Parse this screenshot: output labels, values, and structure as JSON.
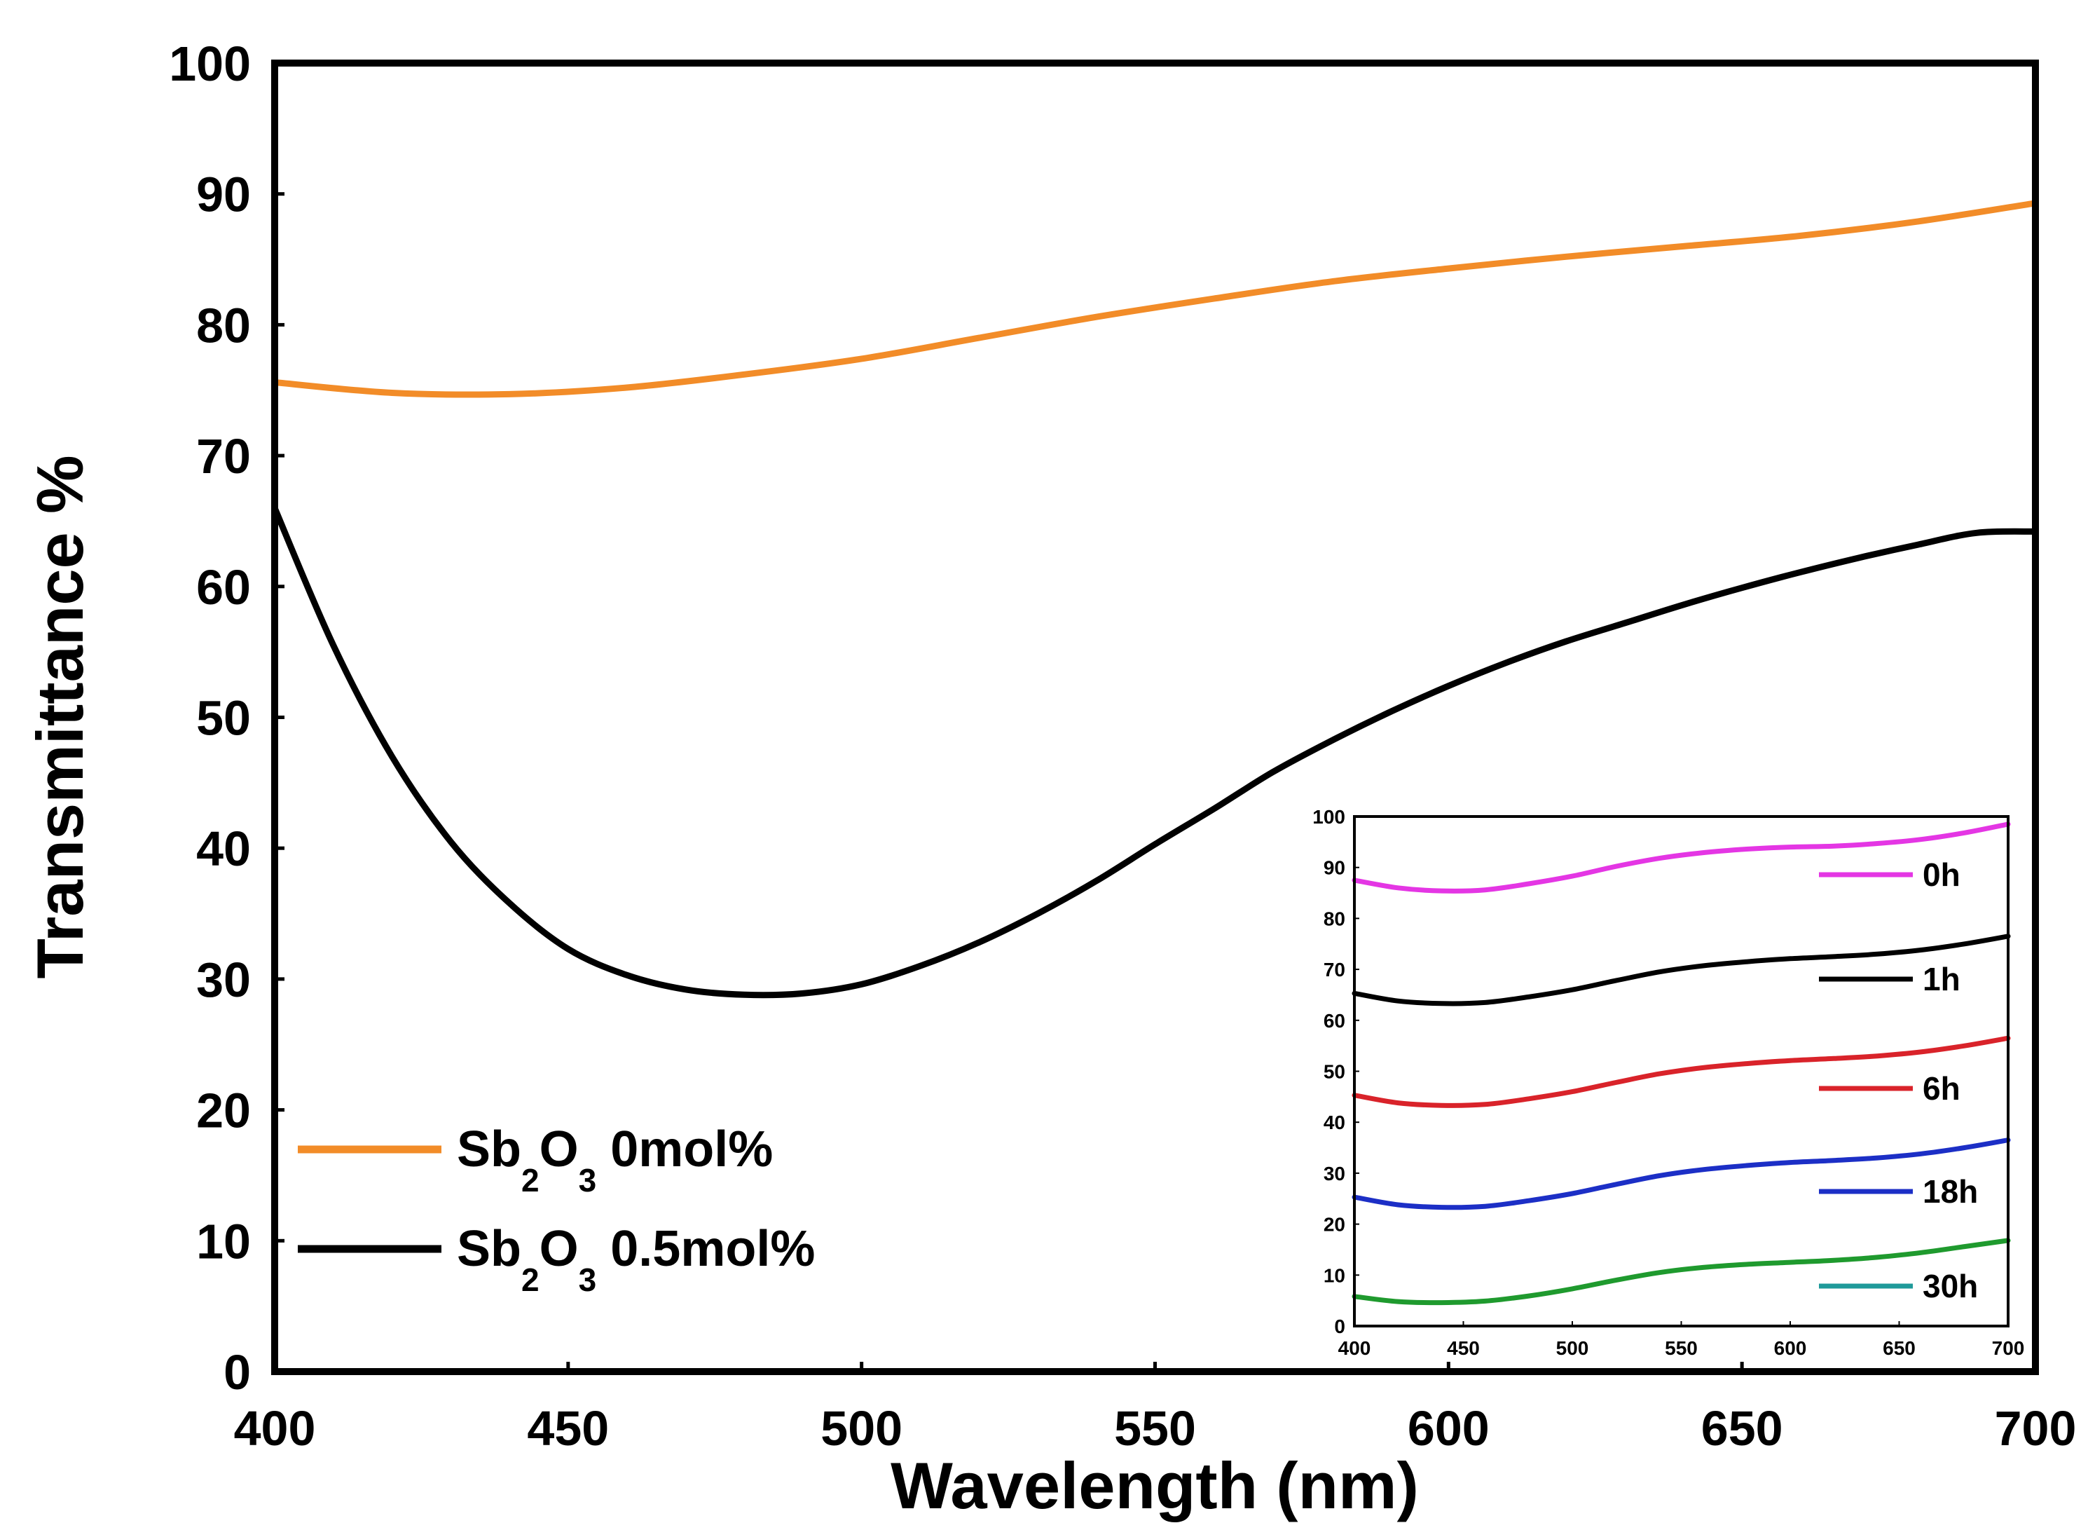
{
  "chart_data": [
    {
      "type": "line",
      "xlabel": "Wavelength (nm)",
      "ylabel": "Transmittance %",
      "xlim": [
        400,
        700
      ],
      "ylim": [
        0,
        100
      ],
      "xticks": [
        400,
        450,
        500,
        550,
        600,
        650,
        700
      ],
      "yticks": [
        0,
        10,
        20,
        30,
        40,
        50,
        60,
        70,
        80,
        90,
        100
      ],
      "legend_position": "bottom-left",
      "series": [
        {
          "name": "Sb2O3 0mol%",
          "label_parts": [
            "Sb",
            "2",
            "O",
            "3",
            " 0mol%"
          ],
          "color": "#F28C28",
          "x": [
            400,
            420,
            440,
            460,
            480,
            500,
            520,
            540,
            560,
            580,
            600,
            620,
            640,
            660,
            680,
            700
          ],
          "y": [
            75.6,
            74.8,
            74.7,
            75.2,
            76.2,
            77.4,
            79.0,
            80.6,
            82.0,
            83.3,
            84.3,
            85.2,
            86.0,
            86.8,
            87.9,
            89.3
          ]
        },
        {
          "name": "Sb2O3 0.5mol%",
          "label_parts": [
            "Sb",
            "2",
            "O",
            "3",
            " 0.5mol%"
          ],
          "color": "#000000",
          "x": [
            400,
            410,
            420,
            430,
            440,
            450,
            460,
            470,
            480,
            490,
            500,
            510,
            520,
            530,
            540,
            550,
            560,
            570,
            580,
            590,
            600,
            610,
            620,
            630,
            640,
            650,
            660,
            670,
            680,
            690,
            700
          ],
          "y": [
            66.0,
            55.5,
            47.0,
            40.5,
            35.8,
            32.3,
            30.3,
            29.2,
            28.8,
            28.9,
            29.6,
            31.0,
            32.8,
            35.0,
            37.5,
            40.3,
            43.0,
            45.8,
            48.2,
            50.4,
            52.4,
            54.2,
            55.8,
            57.2,
            58.6,
            59.9,
            61.1,
            62.2,
            63.2,
            64.1,
            64.2
          ]
        }
      ]
    },
    {
      "type": "line",
      "inset": true,
      "xlim": [
        400,
        700
      ],
      "ylim": [
        0,
        100
      ],
      "xticks": [
        400,
        450,
        500,
        550,
        600,
        650,
        700
      ],
      "yticks": [
        0,
        10,
        20,
        30,
        40,
        50,
        60,
        70,
        80,
        90,
        100
      ],
      "legend_position": "right",
      "series": [
        {
          "name": "0h",
          "color": "#E436E4",
          "x": [
            400,
            420,
            440,
            460,
            480,
            500,
            520,
            540,
            560,
            580,
            600,
            620,
            640,
            660,
            680,
            700
          ],
          "y": [
            87.5,
            86.0,
            85.4,
            85.6,
            86.8,
            88.3,
            90.2,
            91.8,
            92.9,
            93.6,
            94.0,
            94.2,
            94.7,
            95.5,
            96.8,
            98.5
          ]
        },
        {
          "name": "1h",
          "color": "#000000",
          "x": [
            400,
            420,
            440,
            460,
            480,
            500,
            520,
            540,
            560,
            580,
            600,
            620,
            640,
            660,
            680,
            700
          ],
          "y": [
            65.3,
            63.8,
            63.3,
            63.5,
            64.6,
            66.0,
            67.8,
            69.5,
            70.7,
            71.5,
            72.1,
            72.5,
            73.0,
            73.8,
            75.0,
            76.5
          ]
        },
        {
          "name": "6h",
          "color": "#D9232A",
          "x": [
            400,
            420,
            440,
            460,
            480,
            500,
            520,
            540,
            560,
            580,
            600,
            620,
            640,
            660,
            680,
            700
          ],
          "y": [
            45.3,
            43.8,
            43.3,
            43.5,
            44.6,
            46.0,
            47.8,
            49.5,
            50.7,
            51.5,
            52.1,
            52.5,
            53.0,
            53.8,
            55.0,
            56.5
          ]
        },
        {
          "name": "18h",
          "color": "#1C2FC6",
          "x": [
            400,
            420,
            440,
            460,
            480,
            500,
            520,
            540,
            560,
            580,
            600,
            620,
            640,
            660,
            680,
            700
          ],
          "y": [
            25.3,
            23.8,
            23.3,
            23.5,
            24.6,
            26.0,
            27.8,
            29.5,
            30.7,
            31.5,
            32.1,
            32.5,
            33.0,
            33.8,
            35.0,
            36.5
          ]
        },
        {
          "name": "30h",
          "color": "#1F9A2E",
          "legend_color": "#1F9A9A",
          "x": [
            400,
            420,
            440,
            460,
            480,
            500,
            520,
            540,
            560,
            580,
            600,
            620,
            640,
            660,
            680,
            700
          ],
          "y": [
            5.8,
            4.8,
            4.6,
            4.9,
            5.9,
            7.3,
            9.0,
            10.5,
            11.5,
            12.1,
            12.5,
            12.9,
            13.5,
            14.4,
            15.6,
            16.8
          ]
        }
      ]
    }
  ]
}
